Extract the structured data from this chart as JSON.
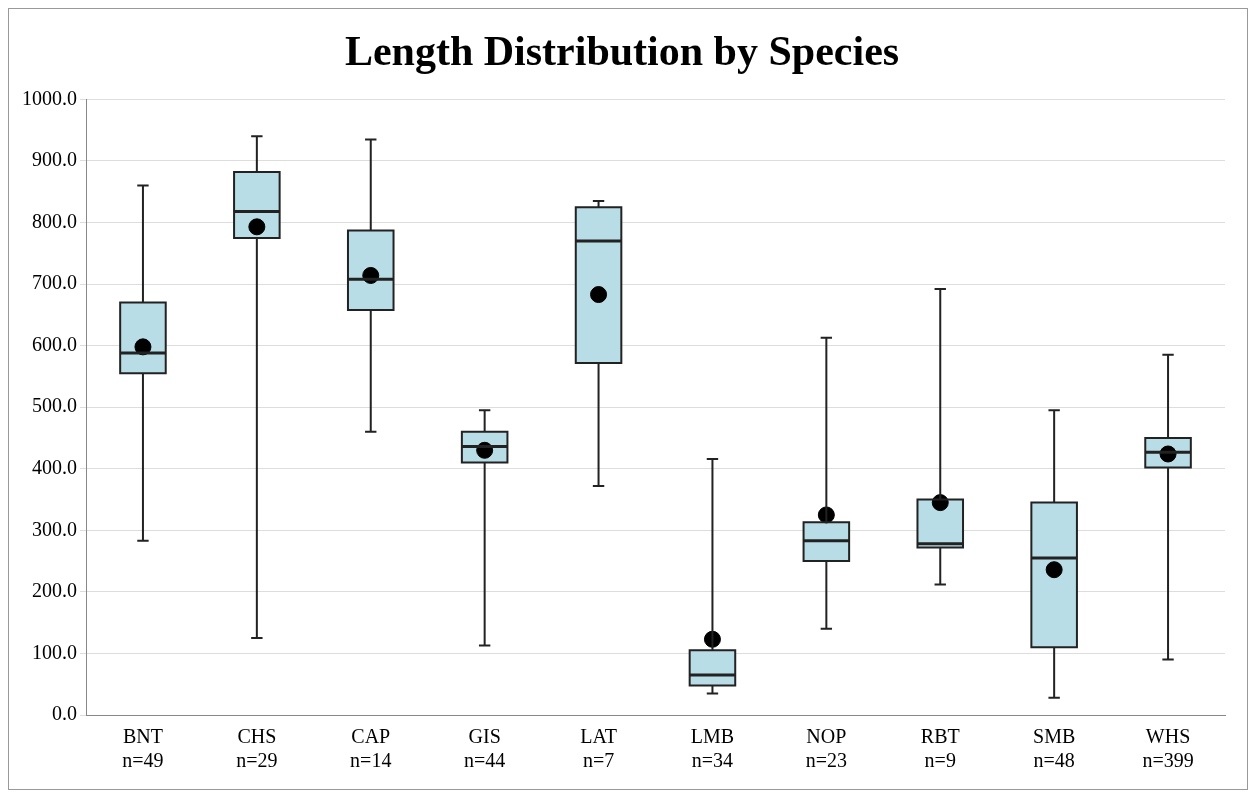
{
  "chart_data": {
    "type": "box",
    "title": "Length Distribution by Species",
    "categories": [
      "BNT\nn=49",
      "CHS\nn=29",
      "CAP\nn=14",
      "GIS\nn=44",
      "LAT\nn=7",
      "LMB\nn=34",
      "NOP\nn=23",
      "RBT\nn=9",
      "SMB\nn=48",
      "WHS\nn=399"
    ],
    "color": "#b8dde6",
    "boxes": [
      {
        "low": 283,
        "q1": 555,
        "median": 588,
        "q3": 670,
        "high": 860,
        "mean": 598
      },
      {
        "low": 125,
        "q1": 775,
        "median": 818,
        "q3": 882,
        "high": 940,
        "mean": 793
      },
      {
        "low": 460,
        "q1": 658,
        "median": 708,
        "q3": 787,
        "high": 935,
        "mean": 714
      },
      {
        "low": 113,
        "q1": 410,
        "median": 436,
        "q3": 460,
        "high": 495,
        "mean": 430
      },
      {
        "low": 372,
        "q1": 572,
        "median": 770,
        "q3": 825,
        "high": 835,
        "mean": 683
      },
      {
        "low": 35,
        "q1": 48,
        "median": 65,
        "q3": 105,
        "high": 416,
        "mean": 123
      },
      {
        "low": 140,
        "q1": 250,
        "median": 283,
        "q3": 313,
        "high": 613,
        "mean": 325
      },
      {
        "low": 212,
        "q1": 272,
        "median": 278,
        "q3": 350,
        "high": 692,
        "mean": 345
      },
      {
        "low": 28,
        "q1": 110,
        "median": 255,
        "q3": 345,
        "high": 495,
        "mean": 236
      },
      {
        "low": 90,
        "q1": 402,
        "median": 427,
        "q3": 450,
        "high": 585,
        "mean": 424
      }
    ],
    "ylim": [
      0,
      1000
    ],
    "yticks": [
      {
        "value": 0,
        "label": "0.0"
      },
      {
        "value": 100,
        "label": "100.0"
      },
      {
        "value": 200,
        "label": "200.0"
      },
      {
        "value": 300,
        "label": "300.0"
      },
      {
        "value": 400,
        "label": "400.0"
      },
      {
        "value": 500,
        "label": "500.0"
      },
      {
        "value": 600,
        "label": "600.0"
      },
      {
        "value": 700,
        "label": "700.0"
      },
      {
        "value": 800,
        "label": "800.0"
      },
      {
        "value": 900,
        "label": "900.0"
      },
      {
        "value": 1000,
        "label": "1000.0"
      }
    ],
    "grid": "y",
    "legend": false,
    "marker": "circle"
  }
}
